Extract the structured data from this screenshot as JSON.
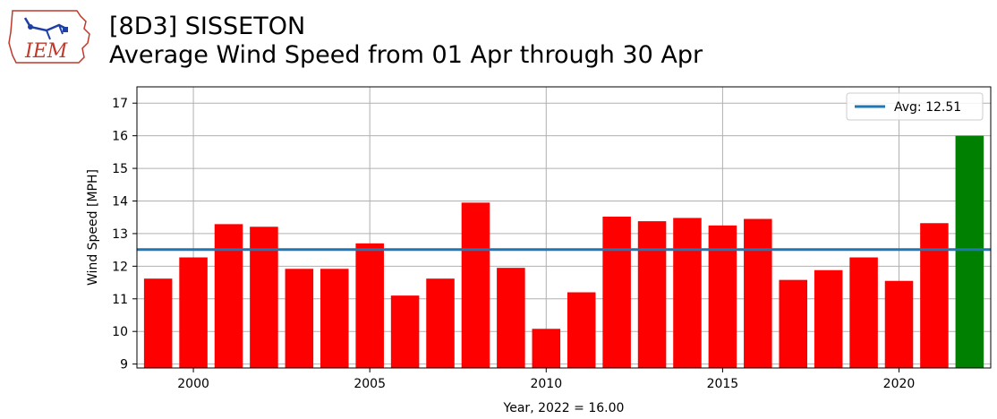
{
  "header": {
    "title_line1": "[8D3] SISSETON",
    "title_line2": "Average Wind Speed from 01 Apr through 30 Apr"
  },
  "logo": {
    "text": "IEM",
    "icon": "iem-logo"
  },
  "chart_data": {
    "type": "bar",
    "x": [
      1999,
      2000,
      2001,
      2002,
      2003,
      2004,
      2005,
      2006,
      2007,
      2008,
      2009,
      2010,
      2011,
      2012,
      2013,
      2014,
      2015,
      2016,
      2017,
      2018,
      2019,
      2020,
      2021,
      2022
    ],
    "values": [
      11.62,
      12.27,
      13.29,
      13.21,
      11.92,
      11.92,
      12.7,
      11.1,
      11.62,
      13.95,
      11.95,
      10.08,
      11.2,
      13.52,
      13.38,
      13.48,
      13.25,
      13.45,
      11.58,
      11.88,
      12.27,
      11.55,
      13.32,
      16.0
    ],
    "bar_colors": [
      "#ff0000",
      "#ff0000",
      "#ff0000",
      "#ff0000",
      "#ff0000",
      "#ff0000",
      "#ff0000",
      "#ff0000",
      "#ff0000",
      "#ff0000",
      "#ff0000",
      "#ff0000",
      "#ff0000",
      "#ff0000",
      "#ff0000",
      "#ff0000",
      "#ff0000",
      "#ff0000",
      "#ff0000",
      "#ff0000",
      "#ff0000",
      "#ff0000",
      "#ff0000",
      "#008000"
    ],
    "average": 12.51,
    "legend": {
      "label": "Avg: 12.51",
      "placement": "top-right",
      "line_color": "#1f77b4"
    },
    "xlabel": "Year, 2022 = 16.00",
    "ylabel": "Wind Speed [MPH]",
    "xlim": [
      1998.4,
      2022.6
    ],
    "ylim": [
      8.88,
      17.5
    ],
    "xticks": [
      2000,
      2005,
      2010,
      2015,
      2020
    ],
    "yticks": [
      9,
      10,
      11,
      12,
      13,
      14,
      15,
      16,
      17
    ],
    "grid": true
  }
}
